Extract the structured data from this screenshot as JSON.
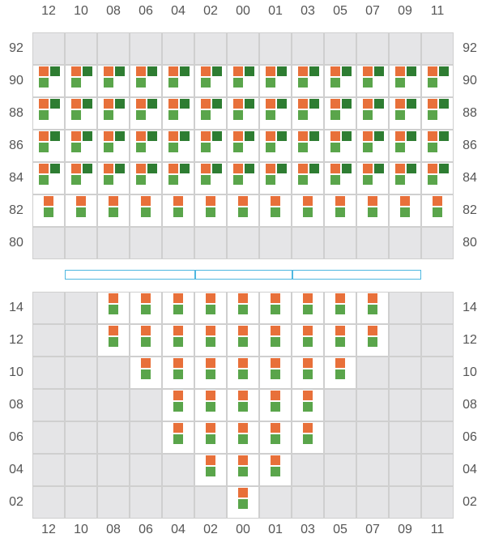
{
  "colors": {
    "orange": "#e8703a",
    "dark_green": "#2e7d32",
    "light_green": "#5aa54b",
    "cell_off": "#e5e5e7",
    "cell_on": "#ffffff",
    "bar_border": "#4fb8e0"
  },
  "columns": [
    "12",
    "10",
    "08",
    "06",
    "04",
    "02",
    "00",
    "01",
    "03",
    "05",
    "07",
    "09",
    "11"
  ],
  "upper": {
    "rows": [
      {
        "label": "92",
        "on": [],
        "marker": "none"
      },
      {
        "label": "90",
        "on": [
          "12",
          "10",
          "08",
          "06",
          "04",
          "02",
          "00",
          "01",
          "03",
          "05",
          "07",
          "09",
          "11"
        ],
        "marker": "triple"
      },
      {
        "label": "88",
        "on": [
          "12",
          "10",
          "08",
          "06",
          "04",
          "02",
          "00",
          "01",
          "03",
          "05",
          "07",
          "09",
          "11"
        ],
        "marker": "triple"
      },
      {
        "label": "86",
        "on": [
          "12",
          "10",
          "08",
          "06",
          "04",
          "02",
          "00",
          "01",
          "03",
          "05",
          "07",
          "09",
          "11"
        ],
        "marker": "triple"
      },
      {
        "label": "84",
        "on": [
          "12",
          "10",
          "08",
          "06",
          "04",
          "02",
          "00",
          "01",
          "03",
          "05",
          "07",
          "09",
          "11"
        ],
        "marker": "triple"
      },
      {
        "label": "82",
        "on": [
          "12",
          "10",
          "08",
          "06",
          "04",
          "02",
          "00",
          "01",
          "03",
          "05",
          "07",
          "09",
          "11"
        ],
        "marker": "pair"
      },
      {
        "label": "80",
        "on": [],
        "marker": "none"
      }
    ]
  },
  "lower": {
    "rows": [
      {
        "label": "14",
        "on": [
          "08",
          "06",
          "04",
          "02",
          "00",
          "01",
          "03",
          "05",
          "07"
        ],
        "marker": "pair"
      },
      {
        "label": "12",
        "on": [
          "08",
          "06",
          "04",
          "02",
          "00",
          "01",
          "03",
          "05",
          "07"
        ],
        "marker": "pair"
      },
      {
        "label": "10",
        "on": [
          "06",
          "04",
          "02",
          "00",
          "01",
          "03",
          "05"
        ],
        "marker": "pair"
      },
      {
        "label": "08",
        "on": [
          "04",
          "02",
          "00",
          "01",
          "03"
        ],
        "marker": "pair"
      },
      {
        "label": "06",
        "on": [
          "04",
          "02",
          "00",
          "01",
          "03"
        ],
        "marker": "pair"
      },
      {
        "label": "04",
        "on": [
          "02",
          "00",
          "01"
        ],
        "marker": "pair"
      },
      {
        "label": "02",
        "on": [
          "00"
        ],
        "marker": "pair"
      }
    ]
  },
  "bar_segments": 3
}
